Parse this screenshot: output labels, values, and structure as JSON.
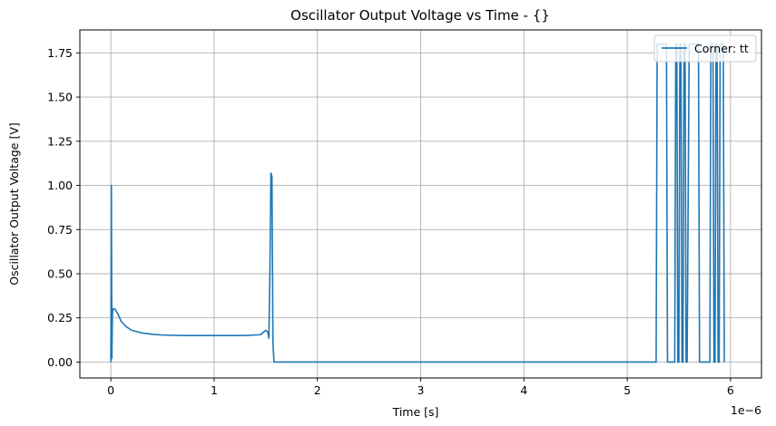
{
  "chart_data": {
    "type": "line",
    "title": "Oscillator Output Voltage vs Time - {}",
    "xlabel": "Time [s]",
    "ylabel": "Oscillator Output Voltage [V]",
    "x_scale_label": "1e−6",
    "x_units_note": "x values in units of 1e-6 s",
    "xlim": [
      -0.3,
      6.3
    ],
    "ylim": [
      -0.09,
      1.88
    ],
    "x_ticks": [
      0,
      1,
      2,
      3,
      4,
      5,
      6
    ],
    "x_tick_labels": [
      "0",
      "1",
      "2",
      "3",
      "4",
      "5",
      "6"
    ],
    "y_ticks": [
      0.0,
      0.25,
      0.5,
      0.75,
      1.0,
      1.25,
      1.5,
      1.75
    ],
    "y_tick_labels": [
      "0.00",
      "0.25",
      "0.50",
      "0.75",
      "1.00",
      "1.25",
      "1.50",
      "1.75"
    ],
    "grid": true,
    "legend_position": "top-right",
    "series": [
      {
        "name": "Corner: tt",
        "color": "#1f77b4",
        "x": [
          0.0,
          0.005,
          0.01,
          0.015,
          0.02,
          0.04,
          0.07,
          0.1,
          0.15,
          0.2,
          0.3,
          0.4,
          0.5,
          0.7,
          1.0,
          1.3,
          1.45,
          1.5,
          1.52,
          1.53,
          1.54,
          1.55,
          1.56,
          1.565,
          1.57,
          1.58,
          1.6,
          5.28,
          5.29,
          5.3,
          5.38,
          5.39,
          5.46,
          5.47,
          5.48,
          5.49,
          5.5,
          5.51,
          5.52,
          5.53,
          5.54,
          5.55,
          5.56,
          5.57,
          5.58,
          5.6,
          5.61,
          5.69,
          5.7,
          5.8,
          5.81,
          5.83,
          5.84,
          5.85,
          5.86,
          5.87,
          5.88,
          5.89,
          5.9,
          5.91,
          5.93,
          5.94
        ],
        "y": [
          0.0,
          1.0,
          0.02,
          0.27,
          0.3,
          0.3,
          0.27,
          0.23,
          0.2,
          0.18,
          0.165,
          0.157,
          0.153,
          0.15,
          0.15,
          0.15,
          0.155,
          0.18,
          0.17,
          0.135,
          0.5,
          1.07,
          1.05,
          0.55,
          0.1,
          0.0,
          0.0,
          0.0,
          1.8,
          1.8,
          1.8,
          0.0,
          0.0,
          1.8,
          1.8,
          0.0,
          0.0,
          1.8,
          1.8,
          0.0,
          0.0,
          1.8,
          1.8,
          0.0,
          0.0,
          1.8,
          1.8,
          1.8,
          0.0,
          0.0,
          1.8,
          1.8,
          0.0,
          0.0,
          1.8,
          1.8,
          0.0,
          0.0,
          1.8,
          1.8,
          1.8,
          0.0
        ]
      }
    ]
  }
}
